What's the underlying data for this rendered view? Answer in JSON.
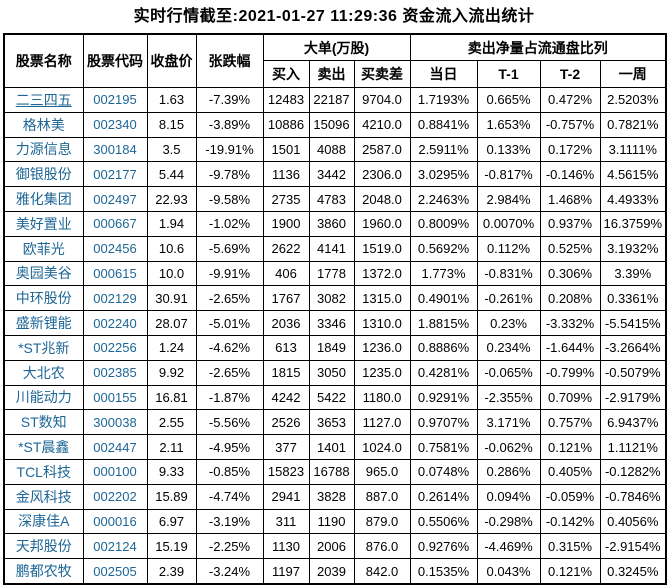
{
  "title": "实时行情截至:2021-01-27 11:29:36 资金流入流出统计",
  "colors": {
    "link_blue": "#1D6696",
    "border": "#000000",
    "text": "#000000",
    "background": "#ffffff"
  },
  "table": {
    "underlined_row_index": 0,
    "headers": {
      "stock_name": "股票名称",
      "stock_code": "股票代码",
      "close_price": "收盘价",
      "change_pct": "张跌幅",
      "large_orders_group": "大单(万股)",
      "buy": "买入",
      "sell": "卖出",
      "diff": "买卖差",
      "net_sell_group": "卖出净量占流通盘比列",
      "day": "当日",
      "t1": "T-1",
      "t2": "T-2",
      "week": "一周"
    },
    "rows": [
      [
        "二三四五",
        "002195",
        "1.63",
        "-7.39%",
        "12483",
        "22187",
        "9704.0",
        "1.7193%",
        "0.665%",
        "0.472%",
        "2.5203%"
      ],
      [
        "格林美",
        "002340",
        "8.15",
        "-3.89%",
        "10886",
        "15096",
        "4210.0",
        "0.8841%",
        "1.653%",
        "-0.757%",
        "0.7821%"
      ],
      [
        "力源信息",
        "300184",
        "3.5",
        "-19.91%",
        "1501",
        "4088",
        "2587.0",
        "2.5911%",
        "0.133%",
        "0.172%",
        "3.1111%"
      ],
      [
        "御银股份",
        "002177",
        "5.44",
        "-9.78%",
        "1136",
        "3442",
        "2306.0",
        "3.0295%",
        "-0.817%",
        "-0.146%",
        "4.5615%"
      ],
      [
        "雅化集团",
        "002497",
        "22.93",
        "-9.58%",
        "2735",
        "4783",
        "2048.0",
        "2.2463%",
        "2.984%",
        "1.468%",
        "4.4933%"
      ],
      [
        "美好置业",
        "000667",
        "1.94",
        "-1.02%",
        "1900",
        "3860",
        "1960.0",
        "0.8009%",
        "0.0070%",
        "0.937%",
        "16.3759%"
      ],
      [
        "欧菲光",
        "002456",
        "10.6",
        "-5.69%",
        "2622",
        "4141",
        "1519.0",
        "0.5692%",
        "0.112%",
        "0.525%",
        "3.1932%"
      ],
      [
        "奥园美谷",
        "000615",
        "10.0",
        "-9.91%",
        "406",
        "1778",
        "1372.0",
        "1.773%",
        "-0.831%",
        "0.306%",
        "3.39%"
      ],
      [
        "中环股份",
        "002129",
        "30.91",
        "-2.65%",
        "1767",
        "3082",
        "1315.0",
        "0.4901%",
        "-0.261%",
        "0.208%",
        "0.3361%"
      ],
      [
        "盛新锂能",
        "002240",
        "28.07",
        "-5.01%",
        "2036",
        "3346",
        "1310.0",
        "1.8815%",
        "0.23%",
        "-3.332%",
        "-5.5415%"
      ],
      [
        "*ST兆新",
        "002256",
        "1.24",
        "-4.62%",
        "613",
        "1849",
        "1236.0",
        "0.8886%",
        "0.234%",
        "-1.644%",
        "-3.2664%"
      ],
      [
        "大北农",
        "002385",
        "9.92",
        "-2.65%",
        "1815",
        "3050",
        "1235.0",
        "0.4281%",
        "-0.065%",
        "-0.799%",
        "-0.5079%"
      ],
      [
        "川能动力",
        "000155",
        "16.81",
        "-1.87%",
        "4242",
        "5422",
        "1180.0",
        "0.9291%",
        "-2.355%",
        "0.709%",
        "-2.9179%"
      ],
      [
        "ST数知",
        "300038",
        "2.55",
        "-5.56%",
        "2526",
        "3653",
        "1127.0",
        "0.9707%",
        "3.171%",
        "0.757%",
        "6.9437%"
      ],
      [
        "*ST晨鑫",
        "002447",
        "2.11",
        "-4.95%",
        "377",
        "1401",
        "1024.0",
        "0.7581%",
        "-0.062%",
        "0.121%",
        "1.1121%"
      ],
      [
        "TCL科技",
        "000100",
        "9.33",
        "-0.85%",
        "15823",
        "16788",
        "965.0",
        "0.0748%",
        "0.286%",
        "0.405%",
        "-0.1282%"
      ],
      [
        "金风科技",
        "002202",
        "15.89",
        "-4.74%",
        "2941",
        "3828",
        "887.0",
        "0.2614%",
        "0.094%",
        "-0.059%",
        "-0.7846%"
      ],
      [
        "深康佳A",
        "000016",
        "6.97",
        "-3.19%",
        "311",
        "1190",
        "879.0",
        "0.5506%",
        "-0.298%",
        "-0.142%",
        "0.4056%"
      ],
      [
        "天邦股份",
        "002124",
        "15.19",
        "-2.25%",
        "1130",
        "2006",
        "876.0",
        "0.9276%",
        "-4.469%",
        "0.315%",
        "-2.9154%"
      ],
      [
        "鹏都农牧",
        "002505",
        "2.39",
        "-3.24%",
        "1197",
        "2039",
        "842.0",
        "0.1535%",
        "0.043%",
        "0.121%",
        "0.3245%"
      ]
    ]
  }
}
